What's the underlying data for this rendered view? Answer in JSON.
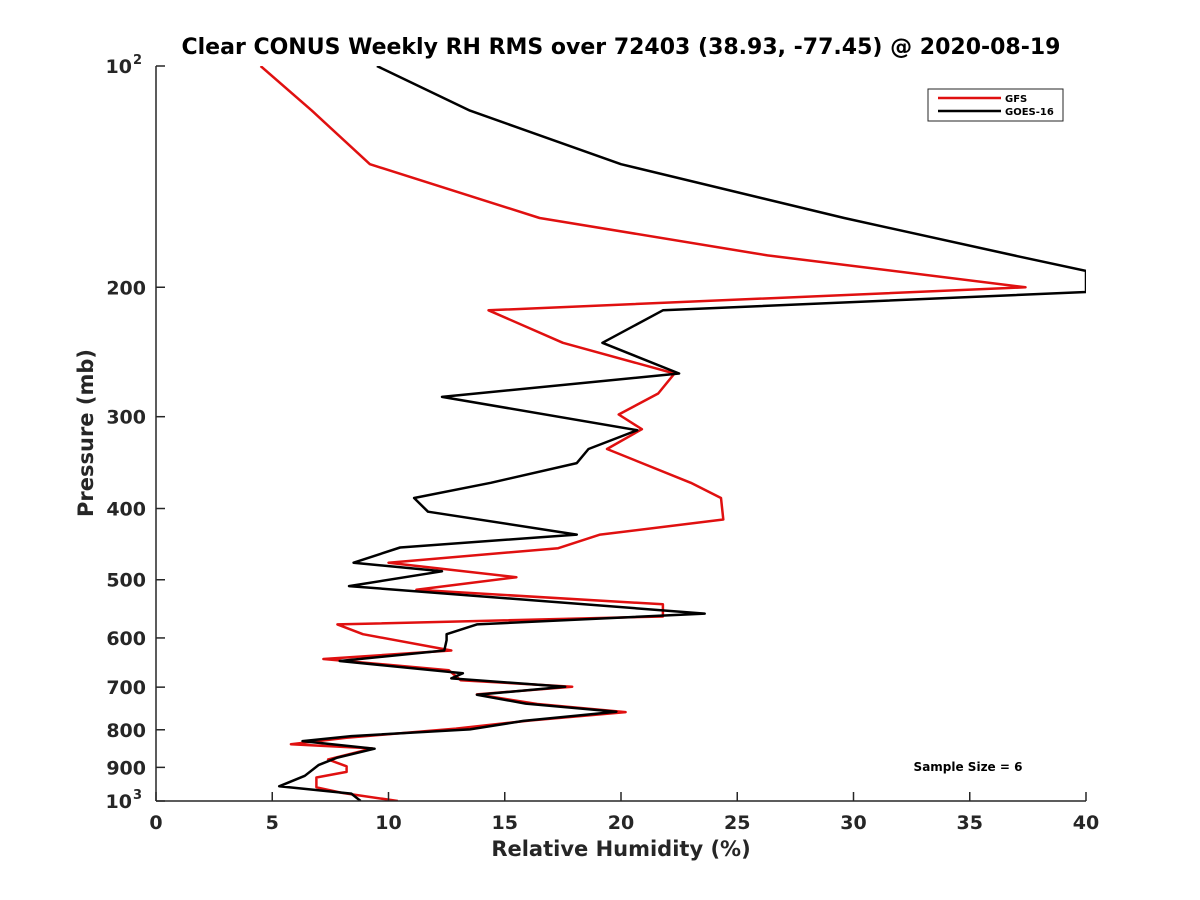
{
  "chart_data": {
    "type": "line",
    "title": "Clear CONUS Weekly RH RMS over 72403 (38.93, -77.45) @ 2020-08-19",
    "xlabel": "Relative Humidity (%)",
    "ylabel": "Pressure (mb)",
    "xlim": [
      0,
      40
    ],
    "ylim": [
      100,
      1000
    ],
    "y_scale": "log",
    "y_direction": "reversed",
    "x_ticks": [
      "0",
      "5",
      "10",
      "15",
      "20",
      "25",
      "30",
      "35",
      "40"
    ],
    "y_ticks": [
      {
        "value": 100,
        "base": "10",
        "exp": "2"
      },
      {
        "value": 200,
        "label": "200"
      },
      {
        "value": 300,
        "label": "300"
      },
      {
        "value": 400,
        "label": "400"
      },
      {
        "value": 500,
        "label": "500"
      },
      {
        "value": 600,
        "label": "600"
      },
      {
        "value": 700,
        "label": "700"
      },
      {
        "value": 800,
        "label": "800"
      },
      {
        "value": 900,
        "label": "900"
      },
      {
        "value": 1000,
        "base": "10",
        "exp": "3"
      }
    ],
    "grid": false,
    "legend_position": "top-right",
    "annotation": "Sample Size = 6",
    "series": [
      {
        "name": "GFS",
        "color": "#e01010",
        "points": [
          [
            4.5,
            100
          ],
          [
            6.7,
            115
          ],
          [
            9.2,
            136
          ],
          [
            16.5,
            161
          ],
          [
            26.3,
            181
          ],
          [
            37.4,
            200
          ],
          [
            14.3,
            215
          ],
          [
            17.5,
            238
          ],
          [
            22.3,
            262
          ],
          [
            21.6,
            279
          ],
          [
            19.9,
            298
          ],
          [
            20.9,
            312
          ],
          [
            19.4,
            332
          ],
          [
            23.0,
            369
          ],
          [
            24.3,
            387
          ],
          [
            24.4,
            414
          ],
          [
            19.1,
            434
          ],
          [
            17.3,
            453
          ],
          [
            10.0,
            474
          ],
          [
            15.5,
            496
          ],
          [
            11.2,
            516
          ],
          [
            21.8,
            540
          ],
          [
            21.8,
            561
          ],
          [
            7.8,
            575
          ],
          [
            8.9,
            593
          ],
          [
            12.7,
            624
          ],
          [
            7.2,
            641
          ],
          [
            12.6,
            664
          ],
          [
            13.1,
            685
          ],
          [
            17.9,
            699
          ],
          [
            13.8,
            716
          ],
          [
            16.4,
            738
          ],
          [
            20.2,
            757
          ],
          [
            16.1,
            777
          ],
          [
            12.9,
            797
          ],
          [
            8.2,
            820
          ],
          [
            5.8,
            837
          ],
          [
            9.3,
            848
          ],
          [
            7.4,
            878
          ],
          [
            8.2,
            897
          ],
          [
            8.2,
            913
          ],
          [
            6.9,
            929
          ],
          [
            6.9,
            958
          ],
          [
            8.0,
            975
          ],
          [
            10.4,
            1000
          ]
        ]
      },
      {
        "name": "GOES-16",
        "color": "#000000",
        "points": [
          [
            9.5,
            100
          ],
          [
            13.5,
            115
          ],
          [
            20.0,
            136
          ],
          [
            29.6,
            161
          ],
          [
            36.9,
            181
          ],
          [
            40.0,
            190
          ],
          [
            40.0,
            203
          ],
          [
            21.8,
            215
          ],
          [
            19.2,
            238
          ],
          [
            22.5,
            262
          ],
          [
            12.3,
            282
          ],
          [
            20.7,
            313
          ],
          [
            18.6,
            332
          ],
          [
            18.1,
            347
          ],
          [
            14.4,
            369
          ],
          [
            11.1,
            387
          ],
          [
            11.7,
            404
          ],
          [
            18.1,
            434
          ],
          [
            10.5,
            452
          ],
          [
            8.5,
            474
          ],
          [
            12.3,
            487
          ],
          [
            8.3,
            510
          ],
          [
            23.6,
            556
          ],
          [
            13.8,
            575
          ],
          [
            12.5,
            593
          ],
          [
            12.5,
            604
          ],
          [
            12.4,
            624
          ],
          [
            7.9,
            645
          ],
          [
            13.2,
            670
          ],
          [
            12.7,
            681
          ],
          [
            17.6,
            699
          ],
          [
            13.8,
            717
          ],
          [
            15.9,
            737
          ],
          [
            19.8,
            756
          ],
          [
            15.8,
            778
          ],
          [
            13.5,
            799
          ],
          [
            8.4,
            816
          ],
          [
            6.3,
            829
          ],
          [
            9.4,
            849
          ],
          [
            7.8,
            873
          ],
          [
            7.0,
            893
          ],
          [
            6.4,
            924
          ],
          [
            5.3,
            955
          ],
          [
            8.4,
            977
          ],
          [
            8.8,
            1000
          ]
        ]
      }
    ]
  }
}
